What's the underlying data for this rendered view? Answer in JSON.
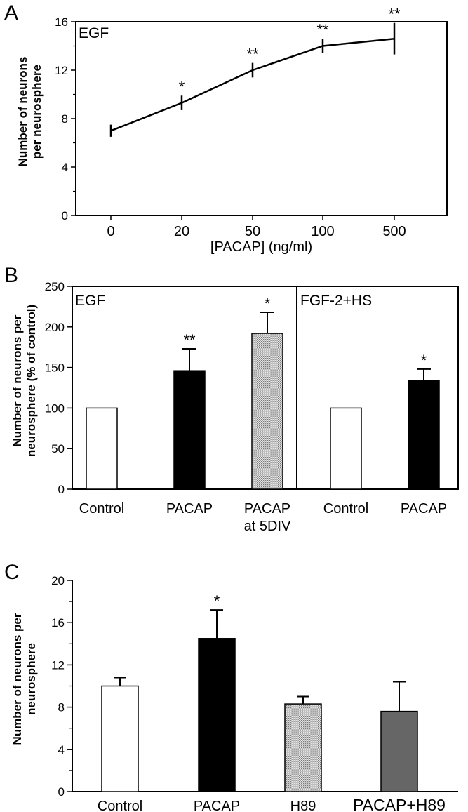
{
  "colors": {
    "black": "#000000",
    "white": "#ffffff",
    "stipple": "#c8c8c8",
    "dark_grey": "#666666"
  },
  "chart_data": [
    {
      "panel": "A",
      "type": "line",
      "condition_label": "EGF",
      "xlabel": "[PACAP] (ng/ml)",
      "ylabel": [
        "Number of neurons",
        "per neurosphere"
      ],
      "ylim": [
        0,
        16
      ],
      "y_ticks": [
        "0",
        "4",
        "8",
        "12",
        "16"
      ],
      "categories": [
        "0",
        "20",
        "50",
        "100",
        "500"
      ],
      "series": [
        {
          "values": [
            7.0,
            9.3,
            12.0,
            14.0,
            14.6
          ],
          "errors": [
            0.5,
            0.6,
            0.6,
            0.6,
            1.3
          ]
        }
      ],
      "significance": [
        "",
        "*",
        "**",
        "**",
        "**"
      ]
    },
    {
      "panel": "B",
      "type": "bar",
      "groups": [
        {
          "label": "EGF",
          "categories": [
            [
              "Control"
            ],
            [
              "PACAP"
            ],
            [
              "PACAP",
              "at 5DIV"
            ]
          ],
          "values": [
            100,
            146,
            192
          ],
          "errors": [
            0,
            27,
            26
          ],
          "fills": [
            "white",
            "black",
            "stipple"
          ],
          "significance": [
            "",
            "**",
            "*"
          ]
        },
        {
          "label": "FGF-2+HS",
          "categories": [
            [
              "Control"
            ],
            [
              "PACAP"
            ]
          ],
          "values": [
            100,
            134
          ],
          "errors": [
            0,
            14
          ],
          "fills": [
            "white",
            "black"
          ],
          "significance": [
            "",
            "*"
          ]
        }
      ],
      "ylabel": [
        "Number of neurons per",
        "neurosphere (% of control)"
      ],
      "ylim": [
        0,
        250
      ],
      "y_ticks": [
        "0",
        "50",
        "100",
        "150",
        "200",
        "250"
      ]
    },
    {
      "panel": "C",
      "type": "bar",
      "categories": [
        "Control",
        "PACAP",
        "H89",
        "PACAP+H89"
      ],
      "values": [
        10.0,
        14.5,
        8.3,
        7.6
      ],
      "errors": [
        0.8,
        2.7,
        0.7,
        2.8
      ],
      "fills": [
        "white",
        "black",
        "stipple",
        "dark_grey"
      ],
      "significance": [
        "",
        "*",
        "",
        ""
      ],
      "ylabel": [
        "Number of neurons per",
        "neurosphere"
      ],
      "ylim": [
        0,
        20
      ],
      "y_ticks": [
        "0",
        "4",
        "8",
        "12",
        "16",
        "20"
      ]
    }
  ]
}
